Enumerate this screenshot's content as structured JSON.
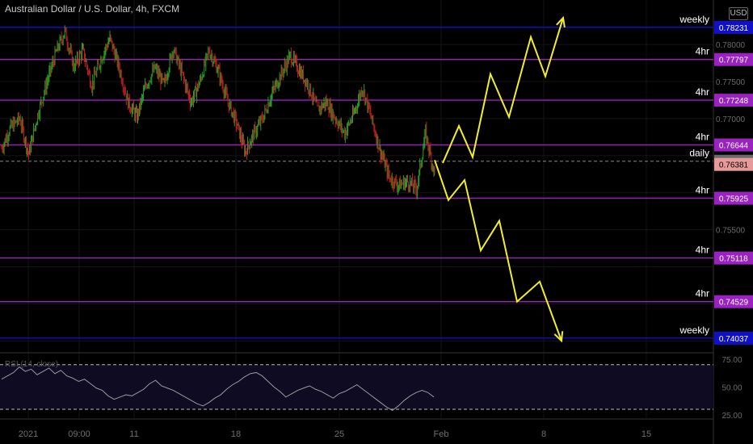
{
  "header": {
    "title": "Australian Dollar / U.S. Dollar, 4h, FXCM"
  },
  "rsi": {
    "label": "RSI (14, close)"
  },
  "axis": {
    "currency_label": "USD"
  },
  "chart_data": [
    {
      "type": "candlestick",
      "symbol": "AUDUSD",
      "timeframe": "4h",
      "ylim": [
        0.7385,
        0.786
      ],
      "price_ticks": [
        "0.78000",
        "0.77500",
        "0.77000",
        "0.75500"
      ],
      "x_labels": [
        "2021",
        "09:00",
        "11",
        "18",
        "25",
        "Feb",
        "8",
        "15"
      ],
      "current_price": "0.76381",
      "approx_path": [
        0.766,
        0.7688,
        0.77,
        0.7652,
        0.7705,
        0.7748,
        0.7788,
        0.7818,
        0.777,
        0.7792,
        0.7745,
        0.778,
        0.7808,
        0.777,
        0.7722,
        0.7702,
        0.7745,
        0.7768,
        0.7745,
        0.7795,
        0.776,
        0.7722,
        0.775,
        0.7792,
        0.7765,
        0.7725,
        0.7695,
        0.7655,
        0.768,
        0.7702,
        0.7735,
        0.776,
        0.7785,
        0.7765,
        0.7745,
        0.7712,
        0.7722,
        0.77,
        0.768,
        0.7705,
        0.7742,
        0.77,
        0.7655,
        0.762,
        0.761,
        0.7615,
        0.7605,
        0.768,
        0.7625
      ],
      "levels": [
        {
          "label": "weekly",
          "value": "0.78231",
          "color": "#1010c8"
        },
        {
          "label": "4hr",
          "value": "0.77797",
          "color": "#9a22c0"
        },
        {
          "label": "4hr",
          "value": "0.77248",
          "color": "#9a22c0"
        },
        {
          "label": "4hr",
          "value": "0.76644",
          "color": "#9a22c0"
        },
        {
          "label": "daily",
          "value": "0.76424",
          "color": "#6b6b6b"
        },
        {
          "label": "4hr",
          "value": "0.75925",
          "color": "#9a22c0"
        },
        {
          "label": "4hr",
          "value": "0.75118",
          "color": "#9a22c0"
        },
        {
          "label": "4hr",
          "value": "0.74529",
          "color": "#9a22c0"
        },
        {
          "label": "weekly",
          "value": "0.74037",
          "color": "#1010c8"
        }
      ],
      "projections": [
        {
          "direction": "up",
          "path": [
            0.764,
            0.769,
            0.7648,
            0.776,
            0.7702,
            0.781,
            0.7757,
            0.7836
          ]
        },
        {
          "direction": "down",
          "path": [
            0.7644,
            0.759,
            0.7617,
            0.7522,
            0.7562,
            0.7453,
            0.748,
            0.74
          ]
        }
      ]
    },
    {
      "type": "line",
      "name": "RSI (14, close)",
      "ylim": [
        22,
        80
      ],
      "y_ticks": [
        "75.00",
        "50.00",
        "25.00"
      ],
      "bands": [
        70,
        30
      ],
      "values": [
        57,
        60,
        63,
        68,
        64,
        66,
        61,
        64,
        67,
        62,
        65,
        60,
        58,
        55,
        57,
        53,
        49,
        47,
        42,
        39,
        41,
        43,
        42,
        45,
        48,
        53,
        56,
        51,
        49,
        47,
        44,
        41,
        38,
        35,
        33,
        36,
        40,
        43,
        48,
        52,
        55,
        59,
        62,
        63,
        60,
        55,
        50,
        46,
        41,
        44,
        47,
        49,
        51,
        48,
        46,
        43,
        40,
        44,
        46,
        49,
        52,
        48,
        44,
        40,
        36,
        32,
        29,
        33,
        38,
        42,
        45,
        47,
        45,
        41
      ]
    }
  ]
}
